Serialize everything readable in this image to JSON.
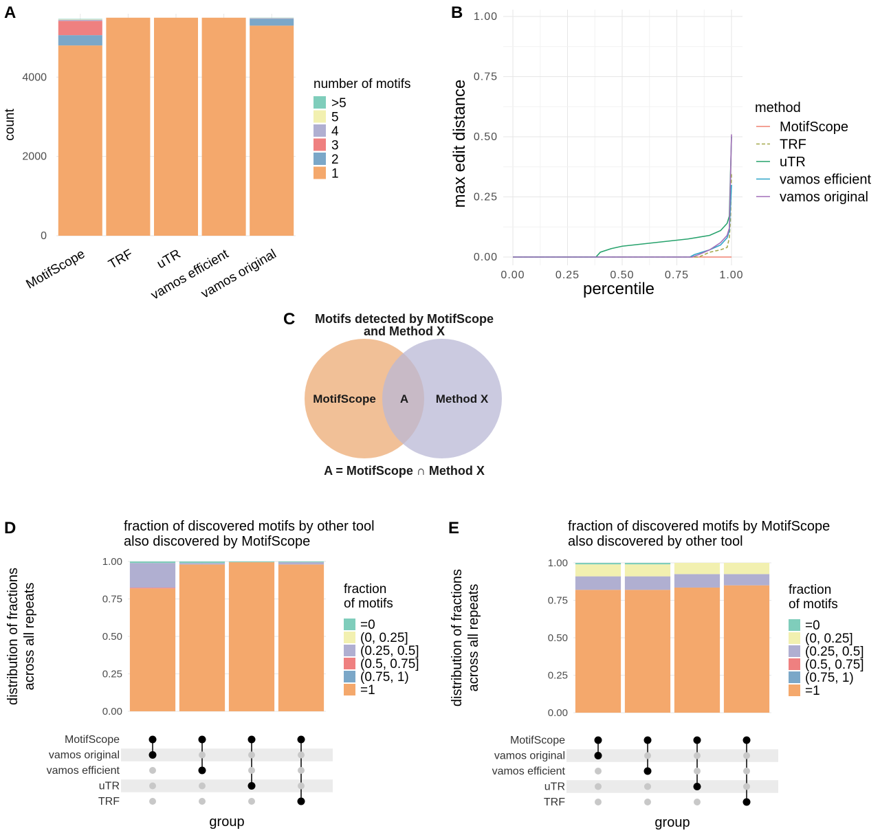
{
  "colors": {
    "gt5": "#7fcdbb",
    "c5": "#f2f0b0",
    "c4": "#b0afd1",
    "c3": "#ef8080",
    "c2": "#7ba7c8",
    "c1": "#f4a86c",
    "MotifScope": "#f08070",
    "TRF": "#a3a84a",
    "uTR": "#26a26c",
    "vamos efficient": "#2ba3c8",
    "vamos original": "#a26fb8",
    "venn_left": "#efb98c",
    "venn_right": "#bab8d6"
  },
  "panels": {
    "A": "A",
    "B": "B",
    "C": "C",
    "D": "D",
    "E": "E"
  },
  "chart_data": [
    {
      "panel": "A",
      "type": "bar",
      "stacked": true,
      "categories": [
        "MotifScope",
        "TRF",
        "uTR",
        "vamos efficient",
        "vamos original"
      ],
      "xlabel": "",
      "ylabel": "count",
      "ylim": [
        0,
        5600
      ],
      "yticks": [
        0,
        2000,
        4000
      ],
      "legend_title": "number of motifs",
      "legend_position": "right",
      "series": [
        {
          "name": "1",
          "color_key": "c1",
          "values": [
            4800,
            5500,
            5500,
            5500,
            5300
          ]
        },
        {
          "name": "2",
          "color_key": "c2",
          "values": [
            260,
            0,
            0,
            0,
            170
          ]
        },
        {
          "name": "3",
          "color_key": "c3",
          "values": [
            360,
            0,
            0,
            0,
            0
          ]
        },
        {
          "name": "4",
          "color_key": "c4",
          "values": [
            30,
            0,
            0,
            0,
            20
          ]
        },
        {
          "name": "5",
          "color_key": "c5",
          "values": [
            10,
            0,
            0,
            0,
            5
          ]
        },
        {
          "name": ">5",
          "color_key": "gt5",
          "values": [
            10,
            0,
            0,
            0,
            5
          ]
        }
      ]
    },
    {
      "panel": "B",
      "type": "line",
      "xlabel": "percentile",
      "ylabel": "max edit distance",
      "xlim": [
        0,
        1
      ],
      "ylim": [
        0,
        1
      ],
      "xticks": [
        "0.00",
        "0.25",
        "0.50",
        "0.75",
        "1.00"
      ],
      "yticks": [
        "0.00",
        "0.25",
        "0.50",
        "0.75",
        "1.00"
      ],
      "legend_title": "method",
      "legend_position": "right",
      "grid": true,
      "series": [
        {
          "name": "MotifScope",
          "dash": false,
          "x": [
            0,
            0.99,
            1.0
          ],
          "y": [
            0,
            0,
            0
          ]
        },
        {
          "name": "TRF",
          "dash": true,
          "x": [
            0,
            0.85,
            0.9,
            0.95,
            0.98,
            0.99,
            0.995,
            1.0
          ],
          "y": [
            0,
            0,
            0.02,
            0.03,
            0.04,
            0.08,
            0.15,
            0.35
          ]
        },
        {
          "name": "uTR",
          "dash": false,
          "x": [
            0,
            0.38,
            0.4,
            0.45,
            0.5,
            0.6,
            0.7,
            0.8,
            0.9,
            0.95,
            0.98,
            0.99,
            1.0
          ],
          "y": [
            0,
            0,
            0.02,
            0.035,
            0.045,
            0.055,
            0.065,
            0.075,
            0.09,
            0.11,
            0.14,
            0.17,
            0.5
          ]
        },
        {
          "name": "vamos efficient",
          "dash": false,
          "x": [
            0,
            0.81,
            0.83,
            0.9,
            0.95,
            0.98,
            0.99,
            1.0
          ],
          "y": [
            0,
            0,
            0.01,
            0.03,
            0.05,
            0.08,
            0.11,
            0.3
          ]
        },
        {
          "name": "vamos original",
          "dash": false,
          "x": [
            0,
            0.82,
            0.85,
            0.9,
            0.95,
            0.98,
            0.99,
            1.0
          ],
          "y": [
            0,
            0,
            0.01,
            0.03,
            0.06,
            0.09,
            0.12,
            0.51
          ]
        }
      ]
    },
    {
      "panel": "D",
      "type": "bar",
      "stacked": true,
      "title": [
        "fraction of discovered motifs by other tool",
        "also discovered by MotifScope"
      ],
      "xlabel": "group",
      "ylabel": [
        "distribution of fractions",
        "across all repeats"
      ],
      "ylim": [
        0,
        1
      ],
      "yticks": [
        "0.00",
        "0.25",
        "0.50",
        "0.75",
        "1.00"
      ],
      "legend_title": [
        "fraction",
        "of motifs"
      ],
      "legend_position": "right",
      "series": [
        {
          "name": "=1",
          "color_key": "c1",
          "values": [
            0.82,
            0.98,
            0.995,
            0.98
          ]
        },
        {
          "name": "(0.75, 1)",
          "color_key": "c2",
          "values": [
            0.0,
            0.0,
            0.0,
            0.0
          ]
        },
        {
          "name": "(0.5, 0.75]",
          "color_key": "c3",
          "values": [
            0.005,
            0.0,
            0.0,
            0.0
          ]
        },
        {
          "name": "(0.25, 0.5]",
          "color_key": "c4",
          "values": [
            0.165,
            0.01,
            0.0,
            0.015
          ]
        },
        {
          "name": "(0, 0.25]",
          "color_key": "c5",
          "values": [
            0.0,
            0.0,
            0.0,
            0.0
          ]
        },
        {
          "name": "=0",
          "color_key": "gt5",
          "values": [
            0.01,
            0.01,
            0.005,
            0.005
          ]
        }
      ],
      "upset_sets": [
        "MotifScope",
        "vamos original",
        "vamos efficient",
        "uTR",
        "TRF"
      ],
      "upset_groups": [
        [
          "MotifScope",
          "vamos original"
        ],
        [
          "MotifScope",
          "vamos efficient"
        ],
        [
          "MotifScope",
          "uTR"
        ],
        [
          "MotifScope",
          "TRF"
        ]
      ]
    },
    {
      "panel": "E",
      "type": "bar",
      "stacked": true,
      "title": [
        "fraction of discovered motifs by MotifScope",
        "also discovered by other tool"
      ],
      "xlabel": "group",
      "ylabel": [
        "distribution of fractions",
        "across all repeats"
      ],
      "ylim": [
        0,
        1
      ],
      "yticks": [
        "0.00",
        "0.25",
        "0.50",
        "0.75",
        "1.00"
      ],
      "legend_title": [
        "fraction",
        "of motifs"
      ],
      "legend_position": "right",
      "series": [
        {
          "name": "=1",
          "color_key": "c1",
          "values": [
            0.82,
            0.82,
            0.835,
            0.85
          ]
        },
        {
          "name": "(0.75, 1)",
          "color_key": "c2",
          "values": [
            0.0,
            0.0,
            0.0,
            0.0
          ]
        },
        {
          "name": "(0.5, 0.75]",
          "color_key": "c3",
          "values": [
            0.0,
            0.0,
            0.0,
            0.0
          ]
        },
        {
          "name": "(0.25, 0.5]",
          "color_key": "c4",
          "values": [
            0.09,
            0.09,
            0.09,
            0.075
          ]
        },
        {
          "name": "(0, 0.25]",
          "color_key": "c5",
          "values": [
            0.08,
            0.08,
            0.075,
            0.075
          ]
        },
        {
          "name": "=0",
          "color_key": "gt5",
          "values": [
            0.01,
            0.01,
            0.0,
            0.0
          ]
        }
      ],
      "upset_sets": [
        "MotifScope",
        "vamos original",
        "vamos efficient",
        "uTR",
        "TRF"
      ],
      "upset_groups": [
        [
          "MotifScope",
          "vamos original"
        ],
        [
          "MotifScope",
          "vamos efficient"
        ],
        [
          "MotifScope",
          "uTR"
        ],
        [
          "MotifScope",
          "TRF"
        ]
      ]
    }
  ],
  "venn": {
    "title_line1": "Motifs detected by MotifScope",
    "title_line2": "and Method X",
    "left_label": "MotifScope",
    "center_label": "A",
    "right_label": "Method X",
    "caption": "A = MotifScope ∩ Method X"
  }
}
